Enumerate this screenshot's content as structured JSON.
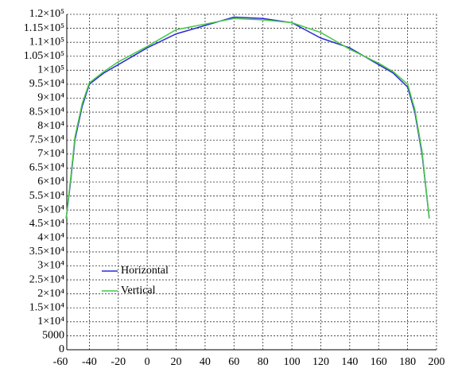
{
  "chart_data": {
    "type": "line",
    "x": [
      -56,
      -53,
      -50,
      -45,
      -40,
      -30,
      -20,
      0,
      20,
      40,
      60,
      80,
      100,
      120,
      140,
      160,
      170,
      180,
      185,
      190,
      195
    ],
    "series": [
      {
        "name": "Horizontal",
        "color": "#2b2bd6",
        "values": [
          47000,
          60000,
          75000,
          87000,
          95000,
          99000,
          102000,
          108000,
          113000,
          116000,
          119000,
          118500,
          117000,
          111500,
          108000,
          102000,
          99000,
          94000,
          85000,
          70000,
          47000
        ]
      },
      {
        "name": "Vertical",
        "color": "#46c846",
        "values": [
          47000,
          61000,
          76000,
          88000,
          95500,
          99500,
          103000,
          108500,
          114500,
          116500,
          118500,
          118000,
          117000,
          113500,
          107500,
          102500,
          99500,
          95000,
          86000,
          71000,
          47000
        ]
      }
    ],
    "xlim": [
      -60,
      200
    ],
    "xticks": [
      -60,
      -40,
      -20,
      0,
      20,
      40,
      60,
      80,
      100,
      120,
      140,
      160,
      180,
      200
    ],
    "ylim": [
      0,
      120000
    ],
    "yticks": [
      0,
      5000,
      {
        "value": 10000,
        "label": "1×10⁴"
      },
      {
        "value": 15000,
        "label": "1.5×10⁴"
      },
      {
        "value": 20000,
        "label": "2×10⁴"
      },
      {
        "value": 25000,
        "label": "2.5×10⁴"
      },
      {
        "value": 30000,
        "label": "3×10⁴"
      },
      {
        "value": 35000,
        "label": "3.5×10⁴"
      },
      {
        "value": 40000,
        "label": "4×10⁴"
      },
      {
        "value": 45000,
        "label": "4.5×10⁴"
      },
      {
        "value": 50000,
        "label": "5×10⁴"
      },
      {
        "value": 55000,
        "label": "5.5×10⁴"
      },
      {
        "value": 60000,
        "label": "6×10⁴"
      },
      {
        "value": 65000,
        "label": "6.5×10⁴"
      },
      {
        "value": 70000,
        "label": "7×10⁴"
      },
      {
        "value": 75000,
        "label": "7.5×10⁴"
      },
      {
        "value": 80000,
        "label": "8×10⁴"
      },
      {
        "value": 85000,
        "label": "8.5×10⁴"
      },
      {
        "value": 90000,
        "label": "9×10⁴"
      },
      {
        "value": 95000,
        "label": "9.5×10⁴"
      },
      {
        "value": 100000,
        "label": "1×10⁵"
      },
      {
        "value": 105000,
        "label": "1.05×10⁵"
      },
      {
        "value": 110000,
        "label": "1.1×10⁵"
      },
      {
        "value": 115000,
        "label": "1.15×10⁵"
      },
      {
        "value": 120000,
        "label": "1.2×10⁵"
      }
    ],
    "grid": true,
    "legend": "lower-left"
  }
}
